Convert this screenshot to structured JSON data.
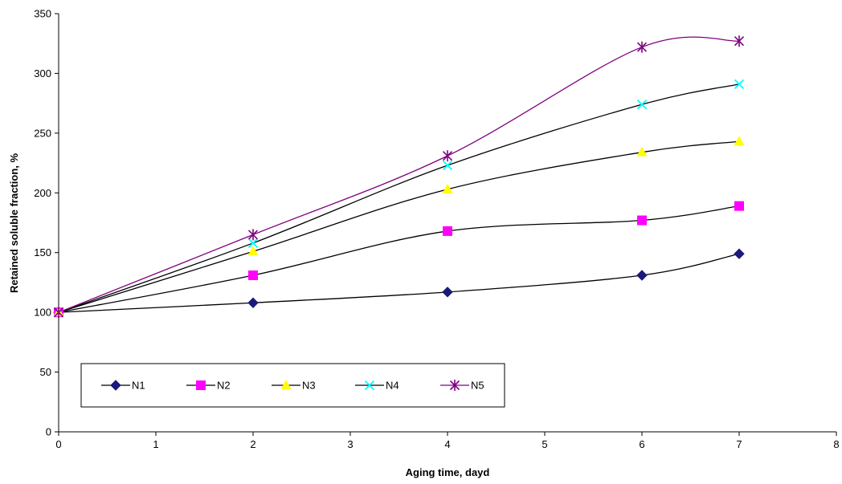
{
  "chart_data": {
    "type": "line",
    "title": "",
    "xlabel": "Aging time, dayd",
    "ylabel": "Retained soluble fraction, %",
    "xlim": [
      0,
      8
    ],
    "ylim": [
      0,
      350
    ],
    "x_ticks": [
      0,
      1,
      2,
      3,
      4,
      5,
      6,
      7,
      8
    ],
    "y_ticks": [
      0,
      50,
      100,
      150,
      200,
      250,
      300,
      350
    ],
    "grid": false,
    "legend_position": "bottom-left, inside plot",
    "smoothed": true,
    "series": [
      {
        "name": "N1",
        "marker": "diamond",
        "marker_color": "#1a1a7a",
        "line_color": "#000000",
        "x": [
          0,
          2,
          4,
          6,
          7
        ],
        "y": [
          100,
          108,
          117,
          131,
          149
        ]
      },
      {
        "name": "N2",
        "marker": "square",
        "marker_color": "#ff00ff",
        "line_color": "#000000",
        "x": [
          0,
          2,
          4,
          6,
          7
        ],
        "y": [
          100,
          131,
          168,
          177,
          189
        ]
      },
      {
        "name": "N3",
        "marker": "triangle",
        "marker_color": "#ffff00",
        "line_color": "#000000",
        "x": [
          0,
          2,
          4,
          6,
          7
        ],
        "y": [
          100,
          151,
          203,
          234,
          243
        ]
      },
      {
        "name": "N4",
        "marker": "x",
        "marker_color": "#00ffff",
        "line_color": "#000000",
        "x": [
          0,
          2,
          4,
          6,
          7
        ],
        "y": [
          100,
          158,
          223,
          274,
          291
        ]
      },
      {
        "name": "N5",
        "marker": "star",
        "marker_color": "#800080",
        "line_color": "#800080",
        "x": [
          0,
          2,
          4,
          6,
          7
        ],
        "y": [
          100,
          165,
          231,
          322,
          327
        ]
      }
    ]
  }
}
